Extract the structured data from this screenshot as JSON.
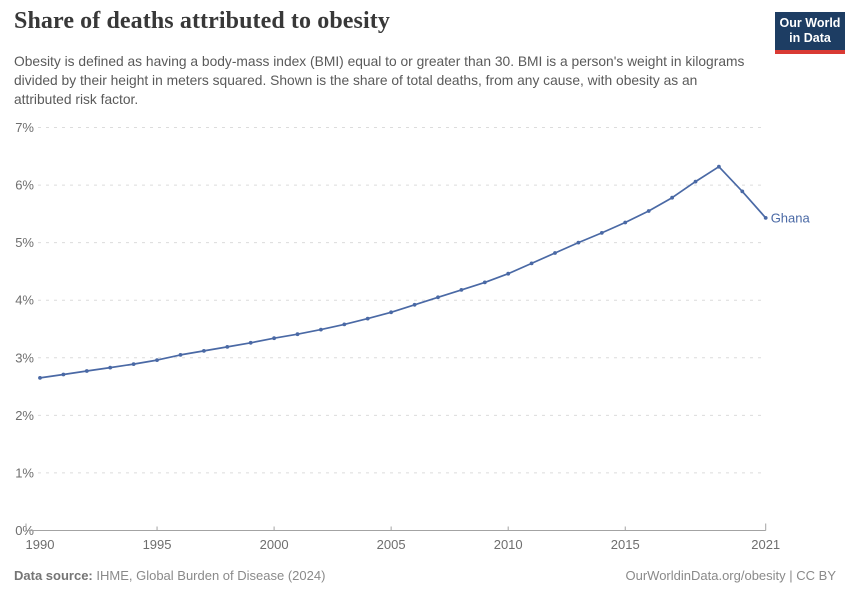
{
  "header": {
    "title": "Share of deaths attributed to obesity",
    "subtitle": "Obesity is defined as having a body-mass index (BMI) equal to or greater than 30. BMI is a person's weight in kilograms divided by their height in meters squared. Shown is the share of total deaths, from any cause, with obesity as an attributed risk factor.",
    "logo": {
      "line1": "Our World",
      "line2": "in Data"
    }
  },
  "footer": {
    "source_label": "Data source:",
    "source_text": " IHME, Global Burden of Disease (2024)",
    "link_text": "OurWorldinData.org/obesity | CC BY"
  },
  "colors": {
    "line": "#4a69a5",
    "grid": "#dcdcdc",
    "axis": "#a3a3a3",
    "tick_label": "#6e6e6e",
    "logo_navy": "#1d3d63",
    "logo_red": "#d93a34"
  },
  "chart_data": {
    "type": "line",
    "title": "Share of deaths attributed to obesity",
    "xlabel": "",
    "ylabel": "",
    "x": [
      1990,
      1991,
      1992,
      1993,
      1994,
      1995,
      1996,
      1997,
      1998,
      1999,
      2000,
      2001,
      2002,
      2003,
      2004,
      2005,
      2006,
      2007,
      2008,
      2009,
      2010,
      2011,
      2012,
      2013,
      2014,
      2015,
      2016,
      2017,
      2018,
      2019,
      2020,
      2021
    ],
    "series": [
      {
        "name": "Ghana",
        "values": [
          2.65,
          2.71,
          2.77,
          2.83,
          2.89,
          2.96,
          3.05,
          3.12,
          3.19,
          3.26,
          3.34,
          3.41,
          3.49,
          3.58,
          3.68,
          3.79,
          3.92,
          4.05,
          4.18,
          4.31,
          4.46,
          4.64,
          4.82,
          5.0,
          5.17,
          5.35,
          5.55,
          5.78,
          6.06,
          6.32,
          5.89,
          5.43
        ]
      }
    ],
    "xticks": [
      1990,
      1995,
      2000,
      2005,
      2010,
      2015,
      2021
    ],
    "yticks": [
      "0%",
      "1%",
      "2%",
      "3%",
      "4%",
      "5%",
      "6%",
      "7%"
    ],
    "xlim": [
      1990,
      2021
    ],
    "ylim": [
      0,
      7
    ],
    "unit": "%",
    "grid": "horizontal-dashed",
    "legend": "entity-label-at-line-end",
    "markers": true
  }
}
